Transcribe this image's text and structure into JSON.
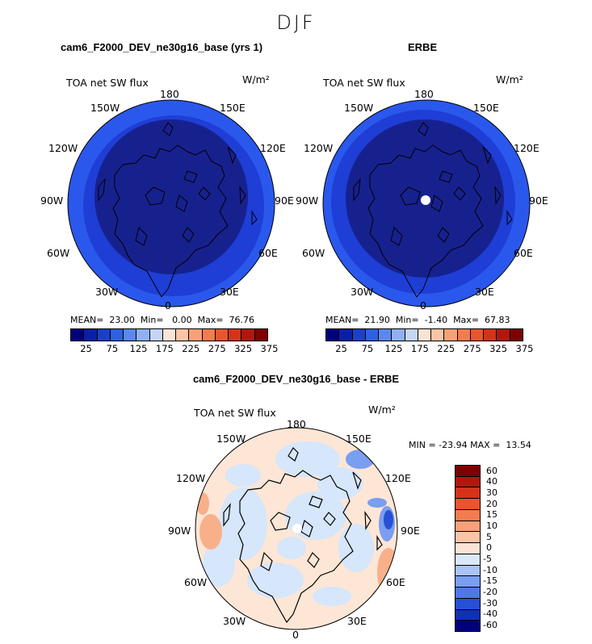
{
  "suptitle": "DJF",
  "panel_left": {
    "title": "cam6_F2000_DEV_ne30g16_base (yrs 1)",
    "variable": "TOA net SW flux",
    "units": "W/m²",
    "stats": "MEAN=  23.00  Min=   0.00  Max=  76.76"
  },
  "panel_right": {
    "title": "ERBE",
    "variable": "TOA net SW flux",
    "units": "W/m²",
    "stats": "MEAN=  21.90  Min=  -1.40  Max=  67.83"
  },
  "panel_diff": {
    "title": "cam6_F2000_DEV_ne30g16_base - ERBE",
    "variable": "TOA net SW flux",
    "units": "W/m²",
    "stats": "MIN = -23.94 MAX =  13.54"
  },
  "lon_labels": {
    "n180": "180",
    "e150": "150E",
    "e120": "120E",
    "e90": "90E",
    "e60": "60E",
    "e30": "30E",
    "p0": "0",
    "w30": "30W",
    "w60": "60W",
    "w90": "90W",
    "w120": "120W",
    "w150": "150W"
  },
  "abs_colorbar": {
    "colors": [
      "#00007e",
      "#0a1fa8",
      "#1a3fcc",
      "#2f5fe6",
      "#5b87f0",
      "#8fb0f5",
      "#c4d6f8",
      "#fde3d5",
      "#fbc4a6",
      "#f8a078",
      "#f47b4f",
      "#ec5430",
      "#d63219",
      "#b3160c",
      "#7e0000"
    ],
    "tick_labels": [
      "25",
      "75",
      "125",
      "175",
      "225",
      "275",
      "325",
      "375"
    ]
  },
  "diff_colorbar": {
    "colors": [
      "#7e0000",
      "#b3160c",
      "#d63219",
      "#ec5430",
      "#f47b4f",
      "#f8a078",
      "#fbc4a6",
      "#fde3d5",
      "#dbe8fb",
      "#aac4f5",
      "#7a9ef0",
      "#4f78e6",
      "#2750d6",
      "#1030b8",
      "#00007e"
    ],
    "tick_labels": [
      "60",
      "40",
      "30",
      "20",
      "15",
      "10",
      "5",
      "0",
      "-5",
      "-10",
      "-15",
      "-20",
      "-30",
      "-40",
      "-60"
    ]
  },
  "map_colors": {
    "deep_blue": "#17218e",
    "mid_blue": "#1e3ed6",
    "ring_blue": "#2a58ec",
    "diff_base": "#fde6d6",
    "diff_light_blue": "#d6e6fb",
    "diff_blue": "#4f78e6",
    "diff_salmon": "#f8b08a"
  }
}
